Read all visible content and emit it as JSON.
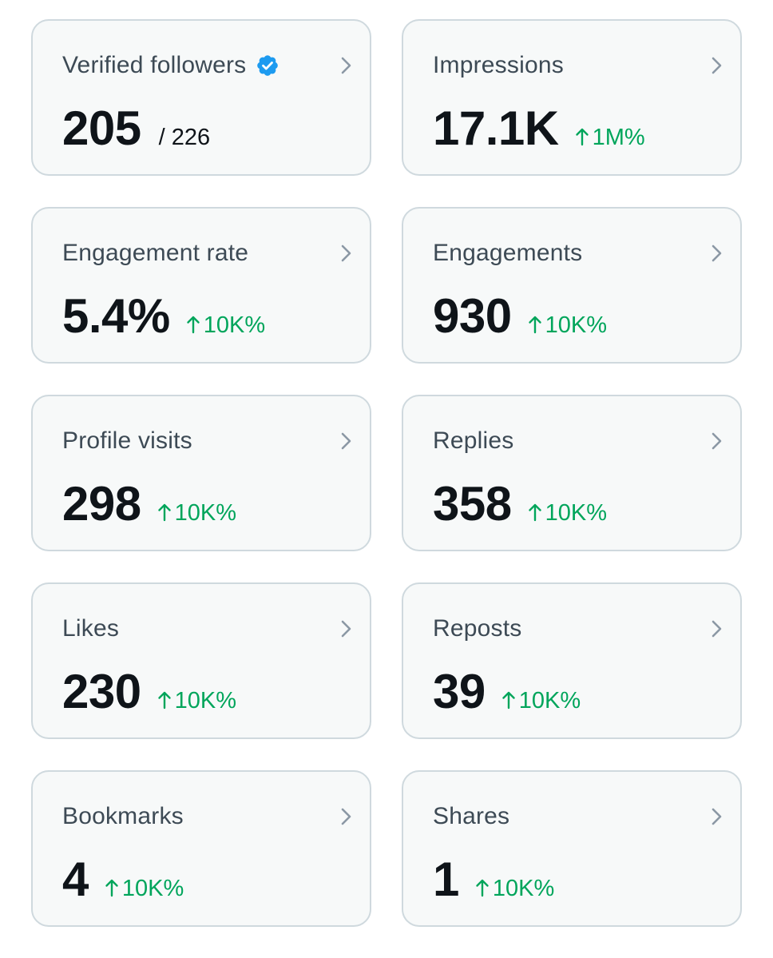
{
  "colors": {
    "card_background": "#f7f9f9",
    "card_border": "#cfd9de",
    "label": "#3d4a55",
    "value": "#0f1419",
    "positive_change": "#00a55b",
    "verified_badge": "#1d9bf0",
    "chevron": "#8b98a5"
  },
  "cards": [
    {
      "label": "Verified followers",
      "value": "205",
      "total": "/ 226",
      "icon": "verified-badge-icon"
    },
    {
      "label": "Impressions",
      "value": "17.1K",
      "change": "1M%",
      "icon": "arrow-up-icon"
    },
    {
      "label": "Engagement rate",
      "value": "5.4%",
      "change": "10K%",
      "icon": "arrow-up-icon"
    },
    {
      "label": "Engagements",
      "value": "930",
      "change": "10K%",
      "icon": "arrow-up-icon"
    },
    {
      "label": "Profile visits",
      "value": "298",
      "change": "10K%",
      "icon": "arrow-up-icon"
    },
    {
      "label": "Replies",
      "value": "358",
      "change": "10K%",
      "icon": "arrow-up-icon"
    },
    {
      "label": "Likes",
      "value": "230",
      "change": "10K%",
      "icon": "arrow-up-icon"
    },
    {
      "label": "Reposts",
      "value": "39",
      "change": "10K%",
      "icon": "arrow-up-icon"
    },
    {
      "label": "Bookmarks",
      "value": "4",
      "change": "10K%",
      "icon": "arrow-up-icon"
    },
    {
      "label": "Shares",
      "value": "1",
      "change": "10K%",
      "icon": "arrow-up-icon"
    }
  ]
}
